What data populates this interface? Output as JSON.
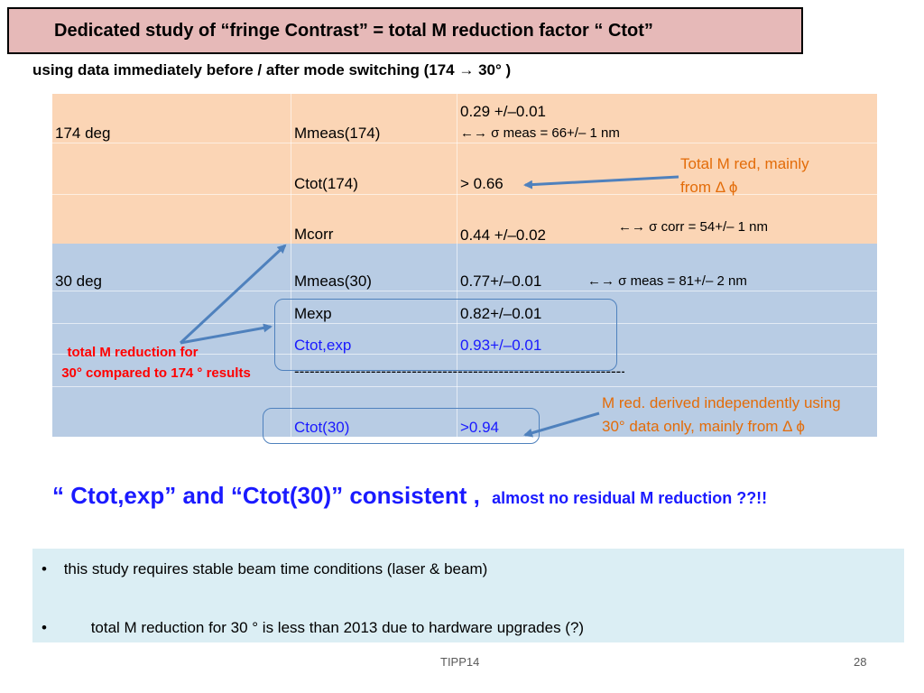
{
  "title": "Dedicated study of “fringe Contrast” = total  M reduction factor “ Ctot”",
  "subtitle": "using data immediately before / after mode switching (174 → 30° )",
  "table": {
    "row1": {
      "label": "174 deg",
      "param": "Mmeas(174)",
      "value": "0.29 +/–0.01",
      "note": "←→ σ meas = 66+/– 1 nm"
    },
    "row2": {
      "param": "Ctot(174)",
      "value": "> 0.66"
    },
    "row3": {
      "param": "Mcorr",
      "value": "0.44 +/–0.02",
      "note": "←→ σ corr = 54+/– 1 nm"
    },
    "row4": {
      "label": "30 deg",
      "param": "Mmeas(30)",
      "value": "0.77+/–0.01",
      "note": "←→ σ meas = 81+/– 2 nm"
    },
    "row5": {
      "param": "Mexp",
      "value": "0.82+/–0.01"
    },
    "row6": {
      "param": "Ctot,exp",
      "value": "0.93+/–0.01"
    },
    "row7": {
      "dashes": "------------------------------------------------------------------"
    },
    "row8": {
      "param": "Ctot(30)",
      "value": ">0.94"
    }
  },
  "callouts": {
    "total_m_red_line1": "Total M red, mainly",
    "total_m_red_line2": "from Δ ϕ",
    "red_label_line1": "total M reduction for",
    "red_label_line2": "30°  compared to 174 °  results",
    "m_red_derived_line1": "M red. derived independently using",
    "m_red_derived_line2": "30°   data only, mainly from Δ ϕ"
  },
  "conclusion": {
    "main": "“ Ctot,exp” and “Ctot(30)” consistent ,",
    "aside": "almost no residual M reduction ??!!"
  },
  "bullets": [
    "this study requires stable beam time conditions (laser & beam)",
    "total M reduction for 30 °  is less than 2013 due to hardware upgrades (?)"
  ],
  "footer": {
    "center": "TIPP14",
    "page": "28"
  },
  "colors": {
    "orange_bg": "#fbd5b5",
    "blue_bg": "#b8cce4",
    "title_bg": "#e6b9b8",
    "accent_blue": "#1a1aff",
    "accent_orange": "#e36c09",
    "arrow": "#4f81bd"
  }
}
